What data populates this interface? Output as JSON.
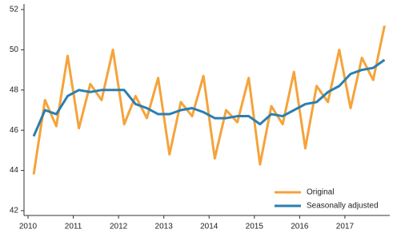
{
  "chart_data": {
    "type": "line",
    "categories": [
      "2010",
      null,
      null,
      null,
      "2011",
      null,
      null,
      null,
      "2012",
      null,
      null,
      null,
      "2013",
      null,
      null,
      null,
      "2014",
      null,
      null,
      null,
      "2015",
      null,
      null,
      null,
      "2016",
      null,
      null,
      null,
      "2017",
      null,
      null,
      null
    ],
    "series": [
      {
        "name": "Original",
        "color": "#f5a33b",
        "values": [
          43.8,
          47.5,
          46.2,
          49.7,
          46.1,
          48.3,
          47.5,
          50.0,
          46.3,
          47.7,
          46.6,
          48.6,
          44.8,
          47.4,
          46.7,
          48.7,
          44.6,
          47.0,
          46.4,
          48.6,
          44.3,
          47.2,
          46.3,
          48.9,
          45.1,
          48.2,
          47.4,
          50.0,
          47.1,
          49.6,
          48.5,
          51.2
        ]
      },
      {
        "name": "Seasonally adjusted",
        "color": "#2a7fb0",
        "values": [
          45.7,
          47.0,
          46.8,
          47.7,
          48.0,
          47.9,
          48.0,
          48.0,
          48.0,
          47.3,
          47.1,
          46.8,
          46.8,
          47.0,
          47.1,
          46.9,
          46.6,
          46.6,
          46.7,
          46.7,
          46.3,
          46.8,
          46.7,
          47.0,
          47.3,
          47.4,
          47.9,
          48.2,
          48.8,
          49.0,
          49.1,
          49.5
        ]
      }
    ],
    "ylim": [
      42,
      52
    ],
    "yticks": [
      42,
      44,
      46,
      48,
      50,
      52
    ],
    "grid": false,
    "legend": "lower right"
  }
}
